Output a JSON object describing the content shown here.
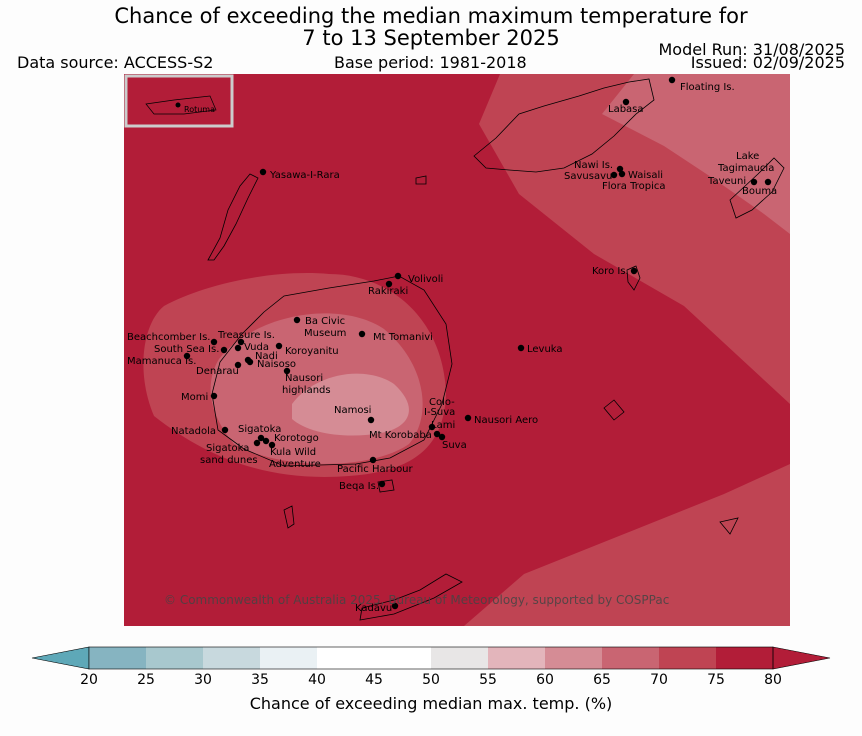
{
  "title_line1": "Chance of exceeding the median maximum temperature for",
  "title_line2": "7 to 13 September 2025",
  "data_source": "Data source: ACCESS-S2",
  "base_period": "Base period: 1981-2018",
  "model_run": "Model Run: 31/08/2025",
  "issued": "Issued: 02/09/2025",
  "copyright": "© Commonwealth of Australia 2025, Bureau of Meteorology, supported by COSPPac",
  "inset_label": "Rotuma",
  "colorbar": {
    "title": "Chance of exceeding median max. temp. (%)",
    "ticks": [
      "20",
      "25",
      "30",
      "35",
      "40",
      "45",
      "50",
      "55",
      "60",
      "65",
      "70",
      "75",
      "80"
    ],
    "colors": [
      "#5ea8b8",
      "#86b4c1",
      "#a8c8ce",
      "#c8d9de",
      "#eaf1f4",
      "#ffffff",
      "#ffffff",
      "#e8e6e6",
      "#e3b5bb",
      "#d58c95",
      "#c96572",
      "#bf4453",
      "#b21d38"
    ]
  },
  "colors": {
    "band_80": "#b21d38",
    "band_75": "#bf4453",
    "band_70": "#c96572",
    "band_65": "#d58c95"
  },
  "places": [
    {
      "name": "Floating Is."
    },
    {
      "name": "Labasa"
    },
    {
      "name": "Nawi Is."
    },
    {
      "name": "Savusavu"
    },
    {
      "name": "Waisali"
    },
    {
      "name": "Flora Tropica"
    },
    {
      "name": "Lake"
    },
    {
      "name": "Tagimaucia"
    },
    {
      "name": "Taveuni"
    },
    {
      "name": "Bouma"
    },
    {
      "name": "Yasawa-I-Rara"
    },
    {
      "name": "Koro Is."
    },
    {
      "name": "Volivoli"
    },
    {
      "name": "Rakiraki"
    },
    {
      "name": "Ba Civic"
    },
    {
      "name": "Museum"
    },
    {
      "name": "Mt Tomanivi"
    },
    {
      "name": "Beachcomber Is."
    },
    {
      "name": "Treasure Is."
    },
    {
      "name": "South Sea Is."
    },
    {
      "name": "Vuda"
    },
    {
      "name": "Koroyanitu"
    },
    {
      "name": "Nadi"
    },
    {
      "name": "Mamanuca Is."
    },
    {
      "name": "Naisoso"
    },
    {
      "name": "Denarau"
    },
    {
      "name": "Levuka"
    },
    {
      "name": "Nausori"
    },
    {
      "name": "highlands"
    },
    {
      "name": "Momi"
    },
    {
      "name": "Namosi"
    },
    {
      "name": "Colo-"
    },
    {
      "name": "I-Suva"
    },
    {
      "name": "Natadola"
    },
    {
      "name": "Sigatoka"
    },
    {
      "name": "Lami"
    },
    {
      "name": "Nausori Aero"
    },
    {
      "name": "Korotogo"
    },
    {
      "name": "Mt Korobaba"
    },
    {
      "name": "Sigatoka"
    },
    {
      "name": "Suva"
    },
    {
      "name": "Kula Wild"
    },
    {
      "name": "sand dunes"
    },
    {
      "name": "Adventure"
    },
    {
      "name": "Pacific Harbour"
    },
    {
      "name": "Beqa Is."
    },
    {
      "name": "Kadavu"
    }
  ]
}
